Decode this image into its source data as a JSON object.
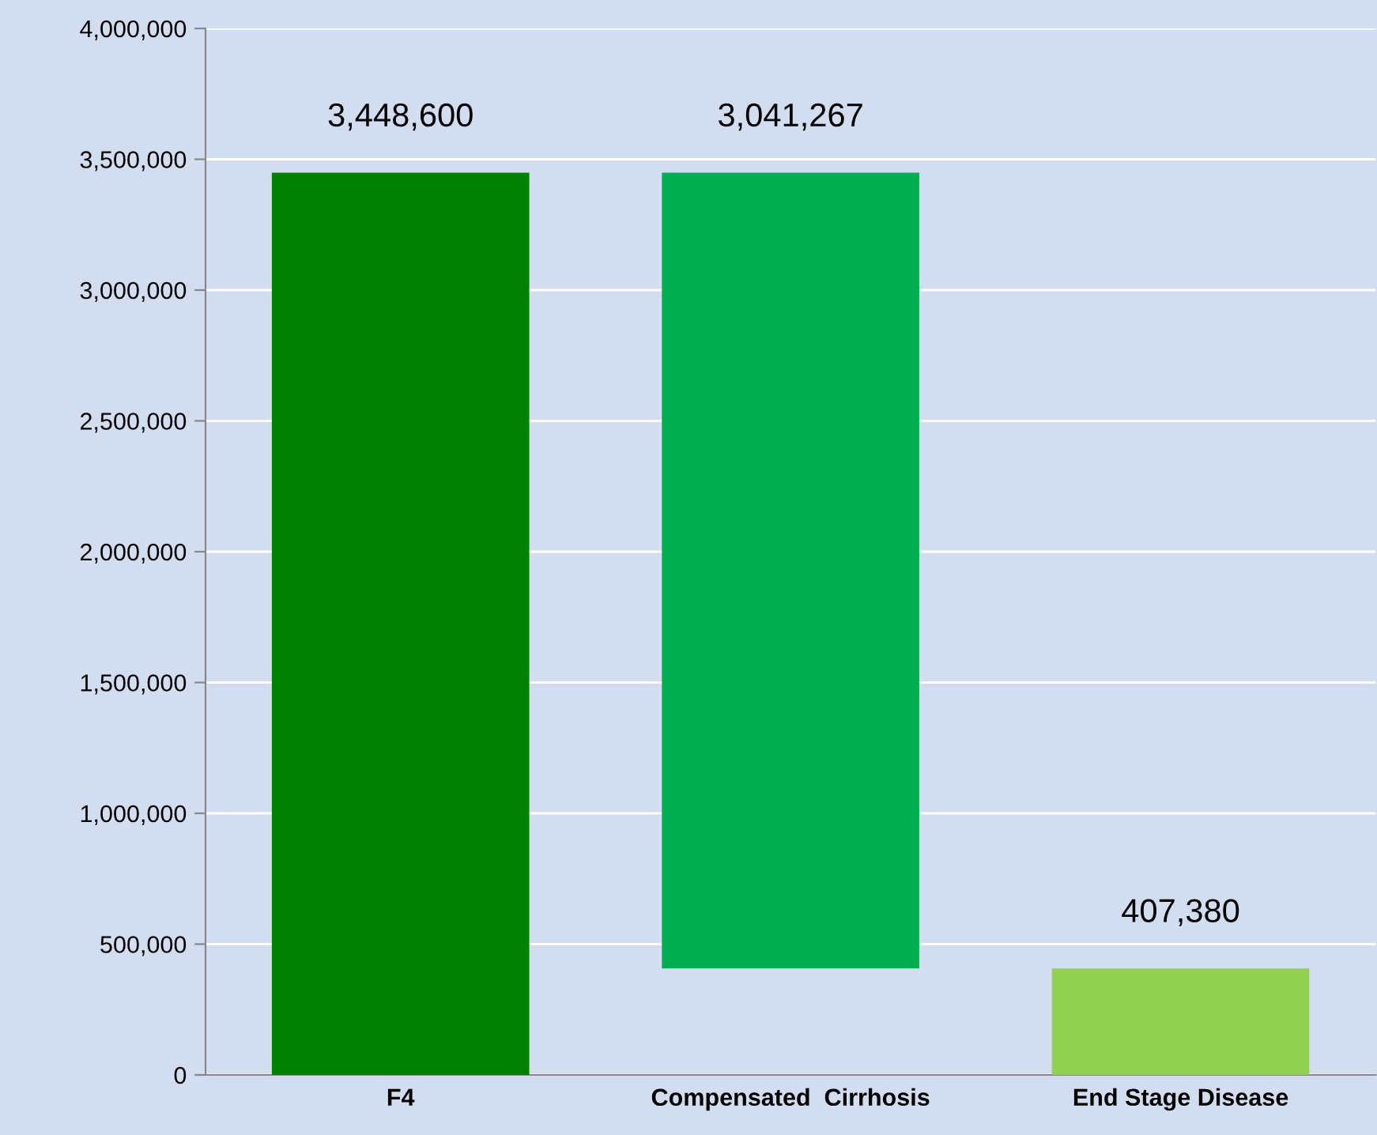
{
  "chart_data": {
    "type": "bar",
    "categories": [
      "F4",
      "Compensated  Cirrhosis",
      "End Stage Disease"
    ],
    "values": [
      3448600,
      3041267,
      407380
    ],
    "base": [
      0,
      407380,
      0
    ],
    "colors": [
      "#008000",
      "#00b050",
      "#92d050"
    ],
    "value_labels": [
      "3,448,600",
      "3,041,267",
      "407,380"
    ],
    "ylim": [
      0,
      4000000
    ],
    "yticks": [
      0,
      {
        "value": 500000,
        "label": "500,000"
      },
      {
        "value": 1000000,
        "label": "1,000,000"
      },
      {
        "value": 1500000,
        "label": "1,500,000"
      },
      {
        "value": 2000000,
        "label": "2,000,000"
      },
      {
        "value": 2500000,
        "label": "2,500,000"
      },
      {
        "value": 3000000,
        "label": "3,000,000"
      },
      {
        "value": 3500000,
        "label": "3,500,000"
      },
      {
        "value": 4000000,
        "label": "4,000,000"
      }
    ],
    "grid": "y",
    "legend": false
  }
}
